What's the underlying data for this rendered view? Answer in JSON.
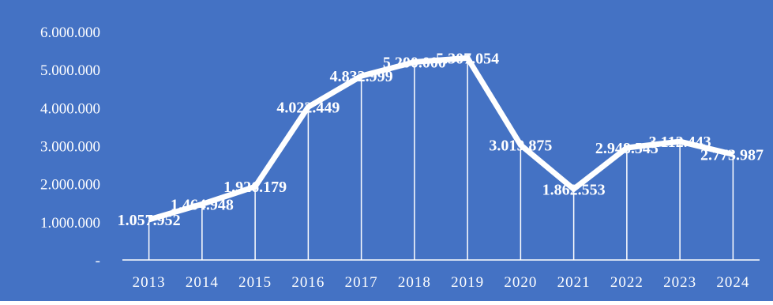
{
  "chart_data": {
    "type": "line",
    "title": "",
    "xlabel": "",
    "ylabel": "",
    "categories": [
      "2013",
      "2014",
      "2015",
      "2016",
      "2017",
      "2018",
      "2019",
      "2020",
      "2021",
      "2022",
      "2023",
      "2024"
    ],
    "series": [
      {
        "values": [
          1057952,
          1464948,
          1926179,
          4022449,
          4832999,
          5200000,
          5307054,
          3019875,
          1862553,
          2948545,
          3112443,
          2773987
        ],
        "labels": [
          "1.057.952",
          "1.464.948",
          "1.926.179",
          "4.022.449",
          "4.832.999",
          "5.200.000",
          "5.307.054",
          "3.019.875",
          "1.862.553",
          "2.948.545",
          "3.112.443",
          "2.773.987"
        ]
      }
    ],
    "ylim": [
      0,
      6000000
    ],
    "yticks": [
      0,
      1000000,
      2000000,
      3000000,
      4000000,
      5000000,
      6000000
    ],
    "ytick_labels": [
      "-",
      "1.000.000",
      "2.000.000",
      "3.000.000",
      "4.000.000",
      "5.000.000",
      "6.000.000"
    ],
    "drop_lines": true,
    "grid": false,
    "legend": "none",
    "colors": {
      "background": "#4472C4",
      "line": "#FFFFFF",
      "text": "#FFFFFF"
    }
  }
}
